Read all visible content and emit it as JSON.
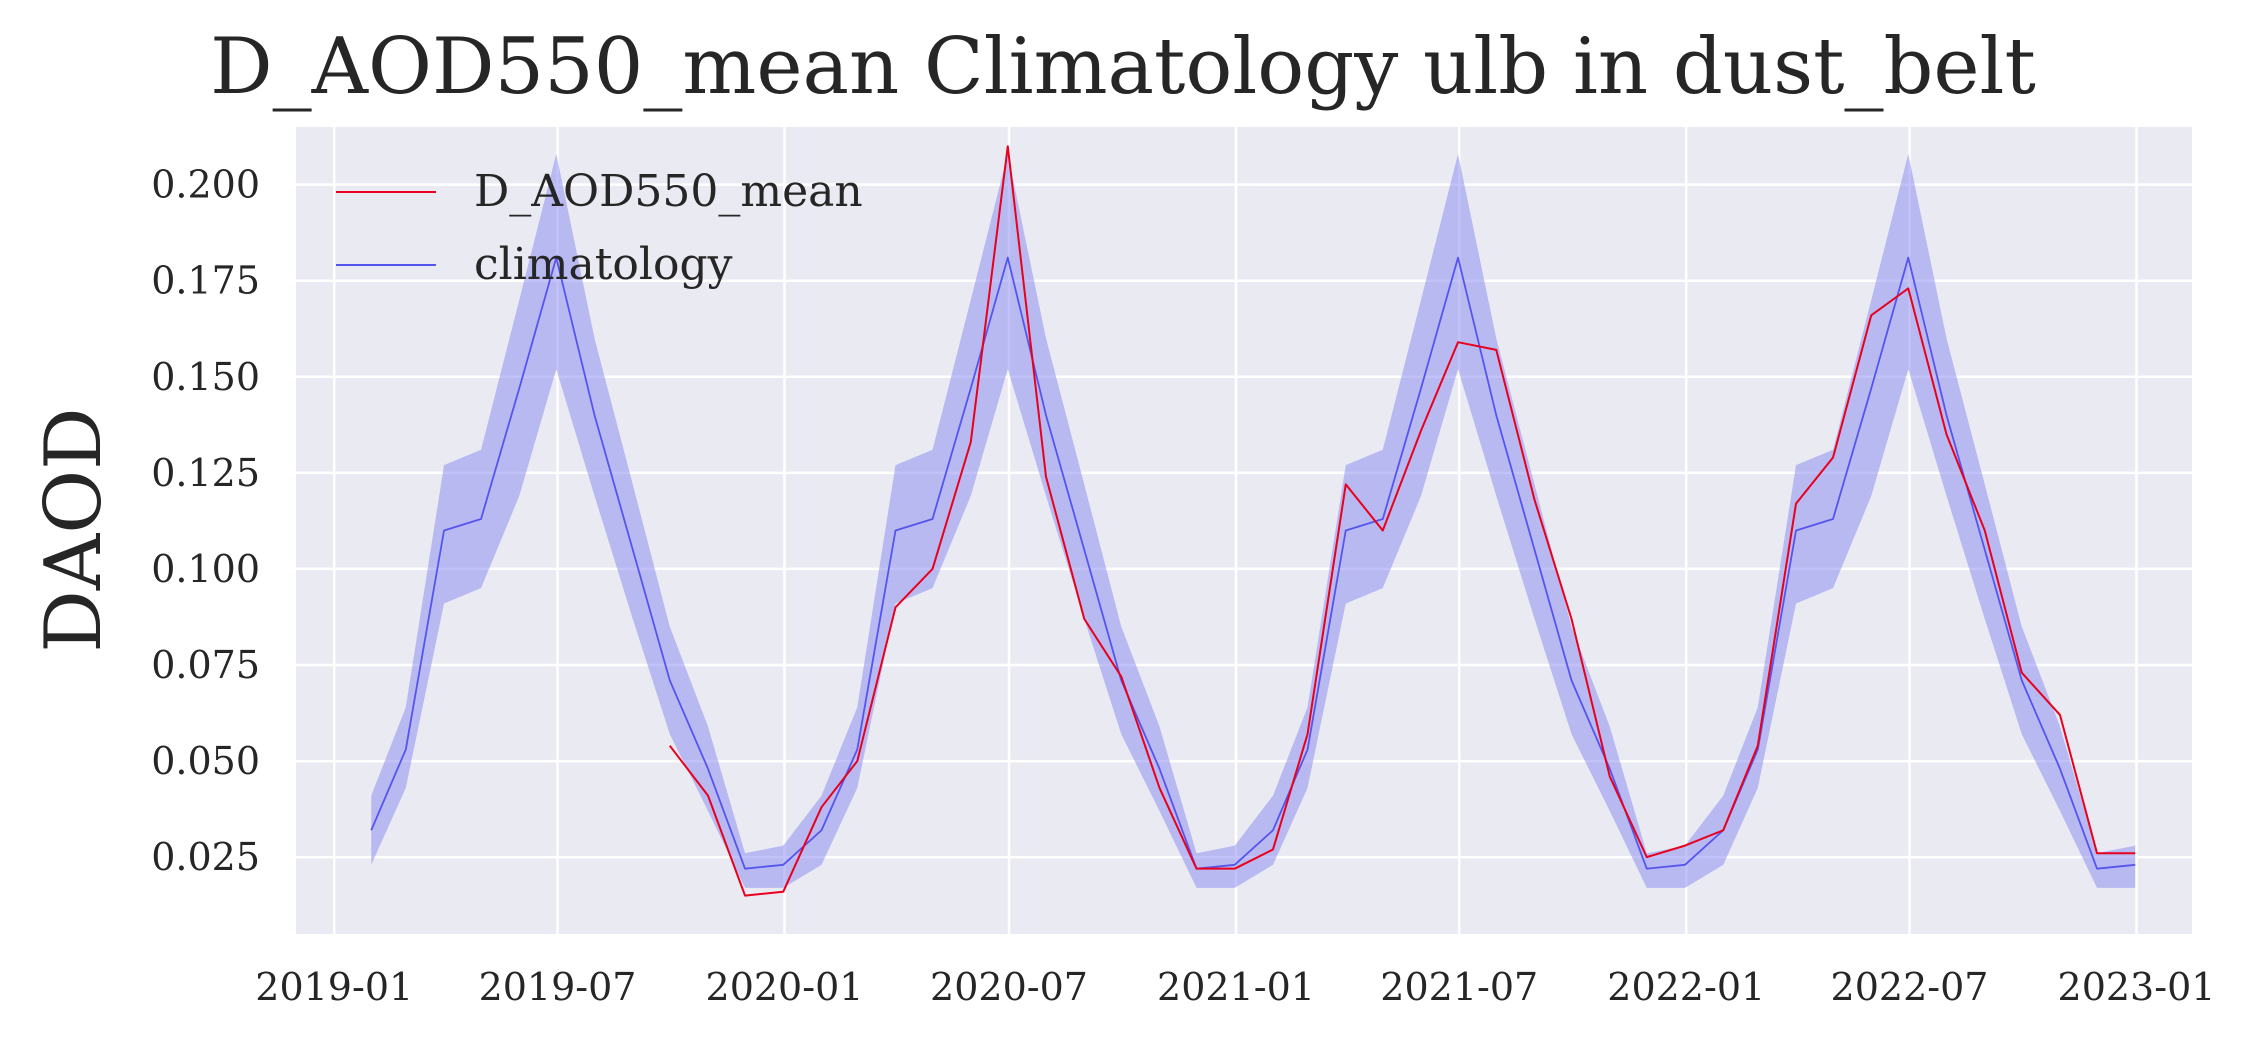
{
  "chart_data": {
    "type": "line",
    "title": "D_AOD550_mean Climatology ulb in dust_belt",
    "xlabel": "",
    "ylabel": "DAOD",
    "grid": true,
    "legend_position": "top-left",
    "xlim": [
      "2018-12-01",
      "2023-02-15"
    ],
    "ylim": [
      0.005,
      0.215
    ],
    "x_ticks": [
      "2019-01",
      "2019-07",
      "2020-01",
      "2020-07",
      "2021-01",
      "2021-07",
      "2022-01",
      "2022-07",
      "2023-01"
    ],
    "x_tick_dates": [
      "2019-01-01",
      "2019-07-01",
      "2020-01-01",
      "2020-07-01",
      "2021-01-01",
      "2021-07-01",
      "2022-01-01",
      "2022-07-01",
      "2023-01-01"
    ],
    "y_ticks": [
      0.025,
      0.05,
      0.075,
      0.1,
      0.125,
      0.15,
      0.175,
      0.2
    ],
    "y_tick_labels": [
      "0.025",
      "0.050",
      "0.075",
      "0.100",
      "0.125",
      "0.150",
      "0.175",
      "0.200"
    ],
    "series": [
      {
        "name": "D_AOD550_mean",
        "color": "#e8001c",
        "x": [
          "2019-09-30",
          "2019-10-31",
          "2019-11-30",
          "2019-12-31",
          "2020-01-31",
          "2020-02-29",
          "2020-03-31",
          "2020-04-30",
          "2020-05-31",
          "2020-06-30",
          "2020-07-31",
          "2020-08-31",
          "2020-09-30",
          "2020-10-31",
          "2020-11-30",
          "2020-12-31",
          "2021-01-31",
          "2021-02-28",
          "2021-03-31",
          "2021-04-30",
          "2021-05-31",
          "2021-06-30",
          "2021-07-31",
          "2021-08-31",
          "2021-09-30",
          "2021-10-31",
          "2021-11-30",
          "2021-12-31",
          "2022-01-31",
          "2022-02-28",
          "2022-03-31",
          "2022-04-30",
          "2022-05-31",
          "2022-06-30",
          "2022-07-31",
          "2022-08-31",
          "2022-09-30",
          "2022-10-31",
          "2022-11-30",
          "2022-12-31"
        ],
        "y": [
          0.054,
          0.041,
          0.015,
          0.016,
          0.038,
          0.05,
          0.09,
          0.1,
          0.133,
          0.21,
          0.124,
          0.087,
          0.072,
          0.043,
          0.022,
          0.022,
          0.027,
          0.057,
          0.122,
          0.11,
          0.136,
          0.159,
          0.157,
          0.118,
          0.087,
          0.046,
          0.025,
          0.028,
          0.032,
          0.054,
          0.117,
          0.129,
          0.166,
          0.173,
          0.135,
          0.11,
          0.073,
          0.062,
          0.026,
          0.026
        ]
      },
      {
        "name": "climatology",
        "color": "#5555ee",
        "band_color": "#8f8ff2",
        "x": [
          "2019-01-31",
          "2019-02-28",
          "2019-03-31",
          "2019-04-30",
          "2019-05-31",
          "2019-06-30",
          "2019-07-31",
          "2019-08-31",
          "2019-09-30",
          "2019-10-31",
          "2019-11-30",
          "2019-12-31",
          "2020-01-31",
          "2020-02-29",
          "2020-03-31",
          "2020-04-30",
          "2020-05-31",
          "2020-06-30",
          "2020-07-31",
          "2020-08-31",
          "2020-09-30",
          "2020-10-31",
          "2020-11-30",
          "2020-12-31",
          "2021-01-31",
          "2021-02-28",
          "2021-03-31",
          "2021-04-30",
          "2021-05-31",
          "2021-06-30",
          "2021-07-31",
          "2021-08-31",
          "2021-09-30",
          "2021-10-31",
          "2021-11-30",
          "2021-12-31",
          "2022-01-31",
          "2022-02-28",
          "2022-03-31",
          "2022-04-30",
          "2022-05-31",
          "2022-06-30",
          "2022-07-31",
          "2022-08-31",
          "2022-09-30",
          "2022-10-31",
          "2022-11-30",
          "2022-12-31"
        ],
        "y": [
          0.032,
          0.053,
          0.11,
          0.113,
          0.147,
          0.181,
          0.14,
          0.105,
          0.071,
          0.048,
          0.022,
          0.023,
          0.032,
          0.053,
          0.11,
          0.113,
          0.147,
          0.181,
          0.14,
          0.105,
          0.071,
          0.048,
          0.022,
          0.023,
          0.032,
          0.053,
          0.11,
          0.113,
          0.147,
          0.181,
          0.14,
          0.105,
          0.071,
          0.048,
          0.022,
          0.023,
          0.032,
          0.053,
          0.11,
          0.113,
          0.147,
          0.181,
          0.14,
          0.105,
          0.071,
          0.048,
          0.022,
          0.023
        ],
        "lower": [
          0.023,
          0.043,
          0.091,
          0.095,
          0.119,
          0.152,
          0.119,
          0.087,
          0.057,
          0.037,
          0.017,
          0.017,
          0.023,
          0.043,
          0.091,
          0.095,
          0.119,
          0.152,
          0.119,
          0.087,
          0.057,
          0.037,
          0.017,
          0.017,
          0.023,
          0.043,
          0.091,
          0.095,
          0.119,
          0.152,
          0.119,
          0.087,
          0.057,
          0.037,
          0.017,
          0.017,
          0.023,
          0.043,
          0.091,
          0.095,
          0.119,
          0.152,
          0.119,
          0.087,
          0.057,
          0.037,
          0.017,
          0.017
        ],
        "upper": [
          0.041,
          0.064,
          0.127,
          0.131,
          0.17,
          0.208,
          0.16,
          0.122,
          0.085,
          0.059,
          0.026,
          0.028,
          0.041,
          0.064,
          0.127,
          0.131,
          0.17,
          0.208,
          0.16,
          0.122,
          0.085,
          0.059,
          0.026,
          0.028,
          0.041,
          0.064,
          0.127,
          0.131,
          0.17,
          0.208,
          0.16,
          0.122,
          0.085,
          0.059,
          0.026,
          0.028,
          0.041,
          0.064,
          0.127,
          0.131,
          0.17,
          0.208,
          0.16,
          0.122,
          0.085,
          0.059,
          0.026,
          0.028
        ]
      }
    ]
  },
  "colors": {
    "plot_background": "#eaeaf2",
    "grid": "#ffffff",
    "text": "#262626"
  }
}
